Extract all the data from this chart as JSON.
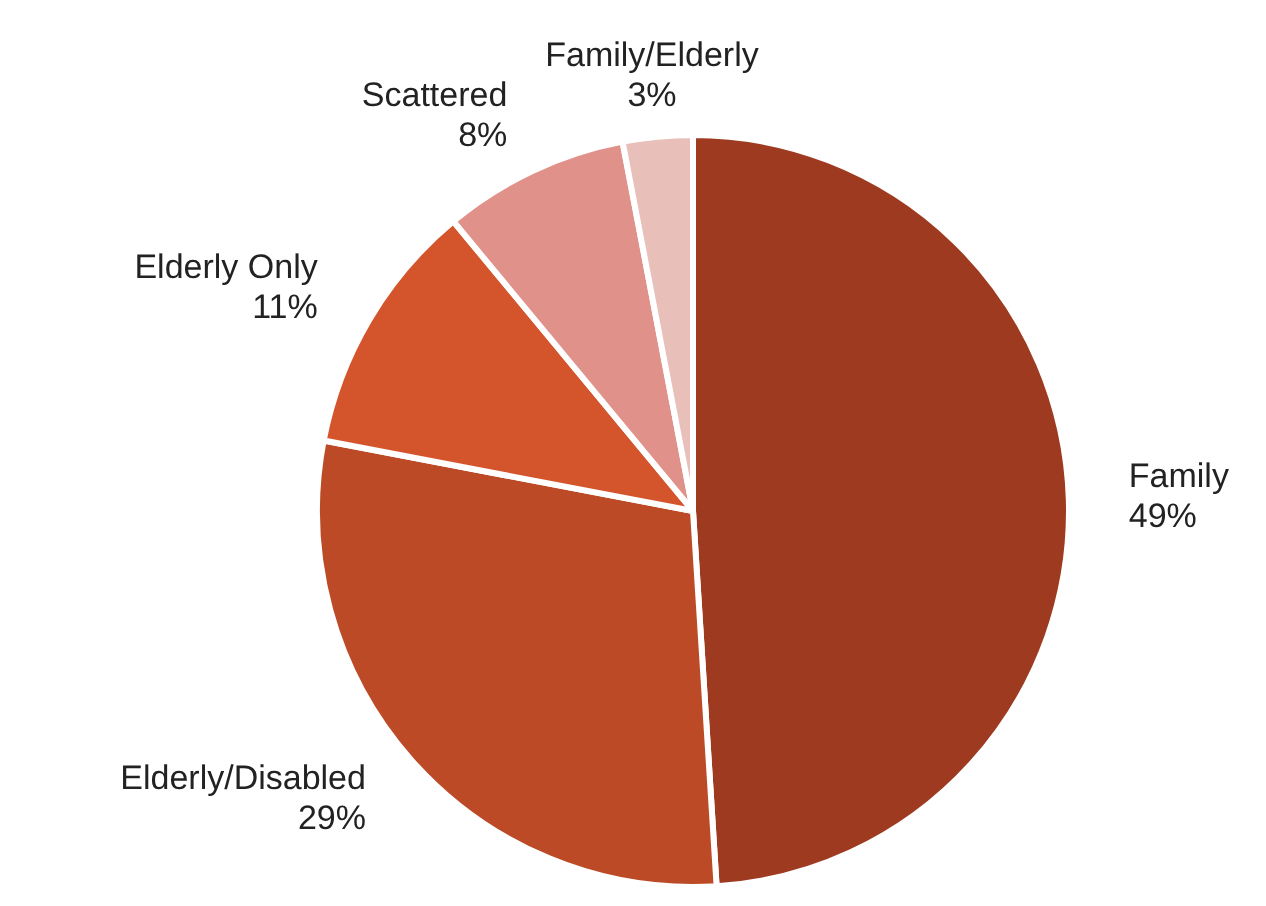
{
  "chart_data": {
    "type": "pie",
    "categories": [
      "Family",
      "Elderly/Disabled",
      "Elderly Only",
      "Scattered",
      "Family/Elderly"
    ],
    "values": [
      49,
      29,
      11,
      8,
      3
    ],
    "colors": [
      "#9e3a1f",
      "#bd4a26",
      "#d4552c",
      "#e0928a",
      "#e8bfb9"
    ],
    "value_labels": [
      "49%",
      "29%",
      "11%",
      "8%",
      "3%"
    ],
    "legend": false
  }
}
